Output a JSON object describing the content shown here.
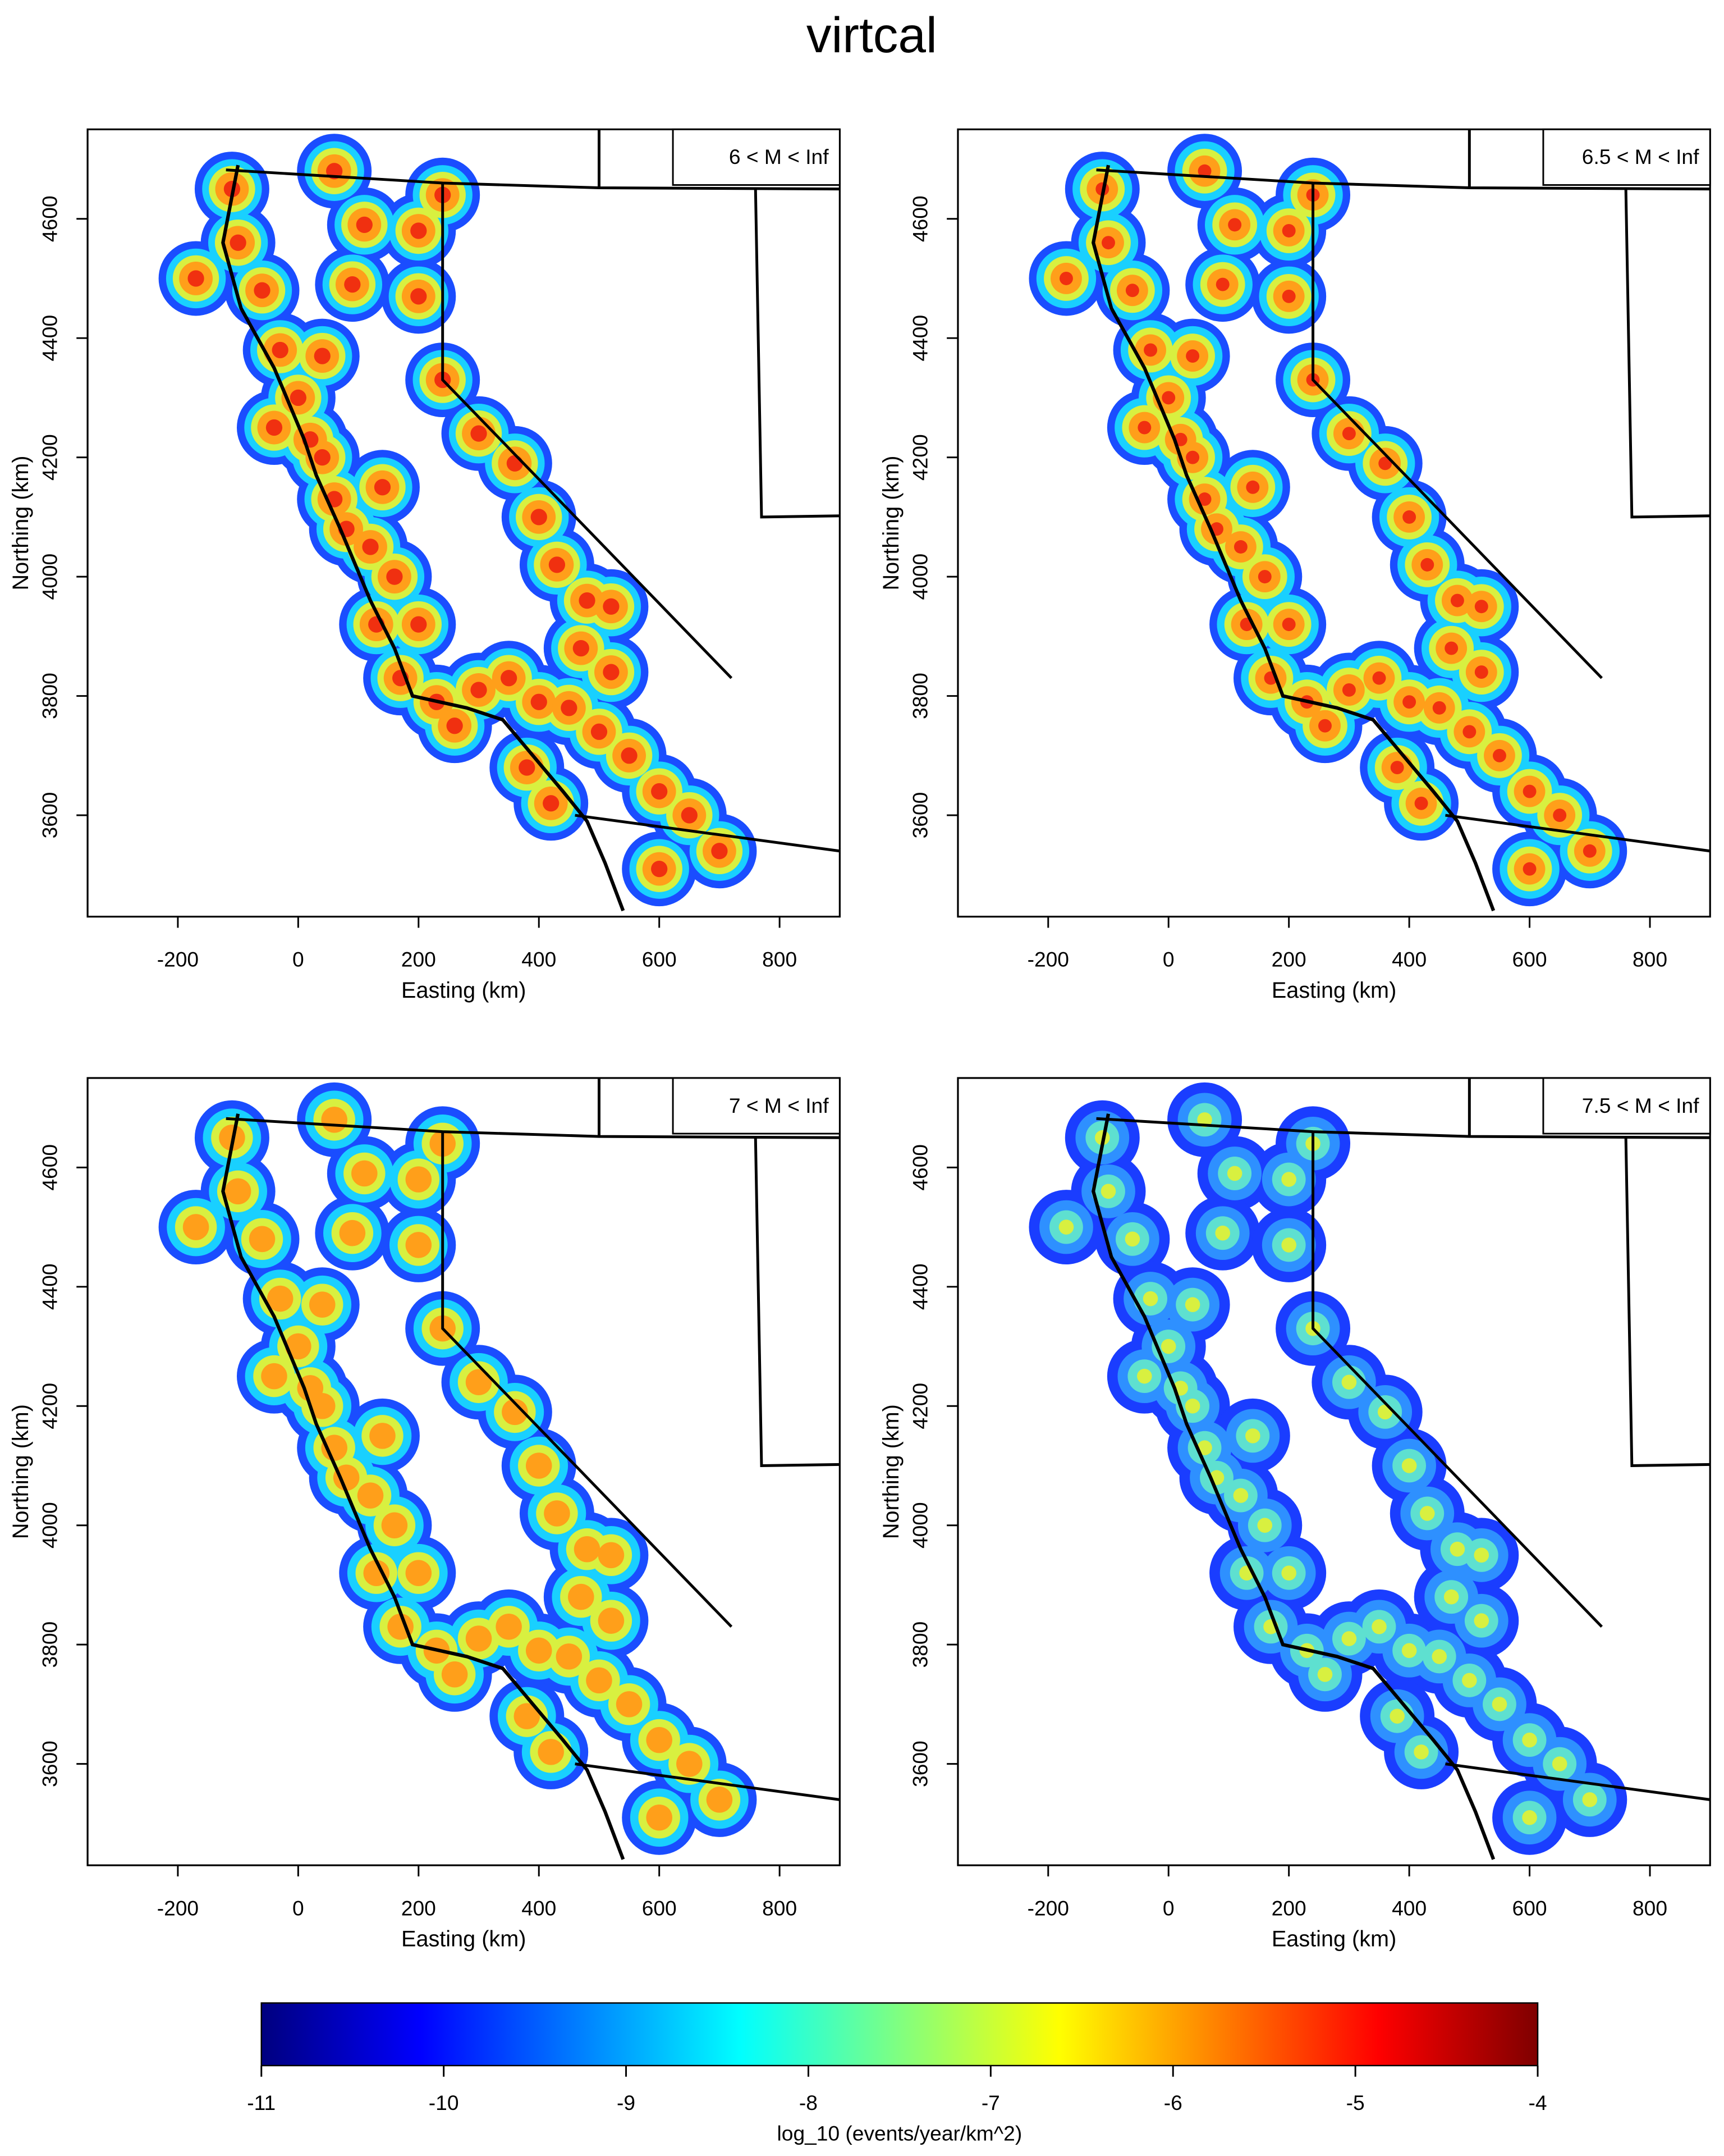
{
  "title": "virtcal",
  "chart_data": [
    {
      "type": "heatmap",
      "label": "6 < M < Inf",
      "xlabel": "Easting (km)",
      "ylabel": "Northing (km)",
      "xlim": [
        -350,
        900
      ],
      "ylim": [
        3430,
        4750
      ],
      "xticks": [
        -200,
        0,
        200,
        400,
        600,
        800
      ],
      "yticks": [
        3600,
        3800,
        4000,
        4200,
        4400,
        4600
      ]
    },
    {
      "type": "heatmap",
      "label": "6.5 < M < Inf",
      "xlabel": "Easting (km)",
      "ylabel": "Northing (km)",
      "xlim": [
        -350,
        900
      ],
      "ylim": [
        3430,
        4750
      ],
      "xticks": [
        -200,
        0,
        200,
        400,
        600,
        800
      ],
      "yticks": [
        3600,
        3800,
        4000,
        4200,
        4400,
        4600
      ]
    },
    {
      "type": "heatmap",
      "label": "7 < M < Inf",
      "xlabel": "Easting (km)",
      "ylabel": "Northing (km)",
      "xlim": [
        -350,
        900
      ],
      "ylim": [
        3430,
        4750
      ],
      "xticks": [
        -200,
        0,
        200,
        400,
        600,
        800
      ],
      "yticks": [
        3600,
        3800,
        4000,
        4200,
        4400,
        4600
      ]
    },
    {
      "type": "heatmap",
      "label": "7.5 < M < Inf",
      "xlabel": "Easting (km)",
      "ylabel": "Northing (km)",
      "xlim": [
        -350,
        900
      ],
      "ylim": [
        3430,
        4750
      ],
      "xticks": [
        -200,
        0,
        200,
        400,
        600,
        800
      ],
      "yticks": [
        3600,
        3800,
        4000,
        4200,
        4400,
        4600
      ]
    }
  ],
  "colorbar": {
    "label": "log_10 (events/year/km^2)",
    "lim": [
      -11,
      -4
    ],
    "ticks": [
      -11,
      -10,
      -9,
      -8,
      -7,
      -6,
      -5,
      -4
    ],
    "colors": [
      "#00007f",
      "#0000ff",
      "#0080ff",
      "#00ffff",
      "#80ff80",
      "#ffff00",
      "#ff8000",
      "#ff0000",
      "#7f0000"
    ]
  }
}
